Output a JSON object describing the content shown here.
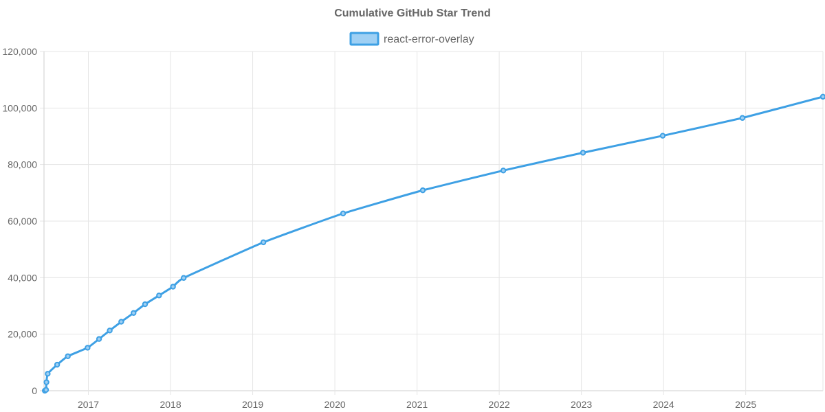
{
  "chart_data": {
    "type": "line",
    "title": "Cumulative GitHub Star Trend",
    "xlabel": "",
    "ylabel": "",
    "grid": true,
    "legend_position": "top-center",
    "x_ticks": [
      "2017",
      "2018",
      "2019",
      "2020",
      "2021",
      "2022",
      "2023",
      "2024",
      "2025"
    ],
    "y_ticks": [
      "0",
      "20,000",
      "40,000",
      "60,000",
      "80,000",
      "100,000",
      "120,000"
    ],
    "xlim": [
      2016.46,
      2025.94
    ],
    "ylim": [
      0,
      120000
    ],
    "series": [
      {
        "name": "react-error-overlay",
        "color": "#3ea0e4",
        "fill": "#9fd0f4",
        "points": [
          {
            "x": 2016.47,
            "y": 0
          },
          {
            "x": 2016.485,
            "y": 300
          },
          {
            "x": 2016.49,
            "y": 3000
          },
          {
            "x": 2016.505,
            "y": 6000
          },
          {
            "x": 2016.62,
            "y": 9200
          },
          {
            "x": 2016.75,
            "y": 12200
          },
          {
            "x": 2016.99,
            "y": 15200
          },
          {
            "x": 2017.13,
            "y": 18300
          },
          {
            "x": 2017.26,
            "y": 21300
          },
          {
            "x": 2017.4,
            "y": 24400
          },
          {
            "x": 2017.55,
            "y": 27500
          },
          {
            "x": 2017.69,
            "y": 30600
          },
          {
            "x": 2017.86,
            "y": 33700
          },
          {
            "x": 2018.03,
            "y": 36800
          },
          {
            "x": 2018.16,
            "y": 39900
          },
          {
            "x": 2019.13,
            "y": 52500
          },
          {
            "x": 2020.1,
            "y": 62700
          },
          {
            "x": 2021.07,
            "y": 70900
          },
          {
            "x": 2022.05,
            "y": 77900
          },
          {
            "x": 2023.02,
            "y": 84200
          },
          {
            "x": 2023.99,
            "y": 90200
          },
          {
            "x": 2024.96,
            "y": 96500
          },
          {
            "x": 2025.94,
            "y": 104000
          }
        ]
      }
    ]
  }
}
